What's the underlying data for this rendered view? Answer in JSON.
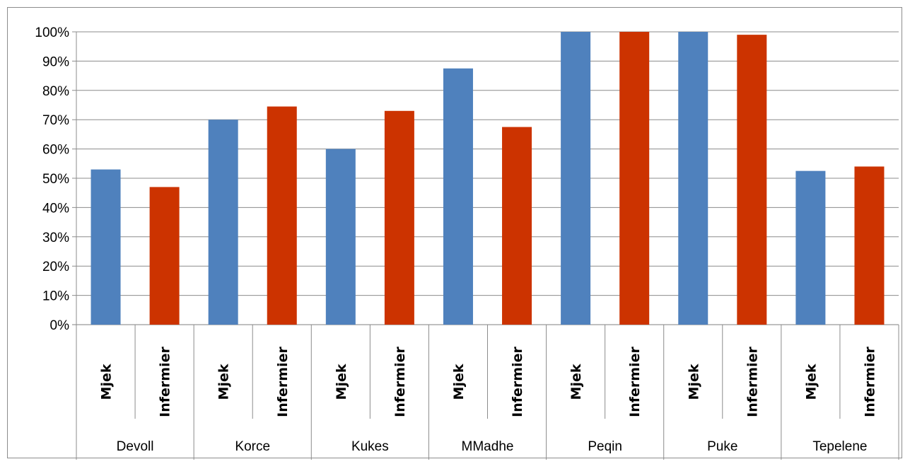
{
  "chart_data": {
    "type": "bar",
    "title": "",
    "xlabel": "",
    "ylabel": "",
    "ylim": [
      0,
      100
    ],
    "y_ticks": [
      "0%",
      "10%",
      "20%",
      "30%",
      "40%",
      "50%",
      "60%",
      "70%",
      "80%",
      "90%",
      "100%"
    ],
    "grid": true,
    "legend": "none",
    "groups": [
      "Devoll",
      "Korce",
      "Kukes",
      "MMadhe",
      "Peqin",
      "Puke",
      "Tepelene"
    ],
    "categories": [
      {
        "group": "Devoll",
        "label": "Mjek",
        "value": 53
      },
      {
        "group": "Devoll",
        "label": "Infermier",
        "value": 47
      },
      {
        "group": "Korce",
        "label": "Mjek",
        "value": 70
      },
      {
        "group": "Korce",
        "label": "Infermier",
        "value": 74.5
      },
      {
        "group": "Kukes",
        "label": "Mjek",
        "value": 60
      },
      {
        "group": "Kukes",
        "label": "Infermier",
        "value": 73
      },
      {
        "group": "MMadhe",
        "label": "Mjek",
        "value": 87.5
      },
      {
        "group": "MMadhe",
        "label": "Infermier",
        "value": 67.5
      },
      {
        "group": "Peqin",
        "label": "Mjek",
        "value": 100
      },
      {
        "group": "Peqin",
        "label": "Infermier",
        "value": 100
      },
      {
        "group": "Puke",
        "label": "Mjek",
        "value": 100
      },
      {
        "group": "Puke",
        "label": "Infermier",
        "value": 99
      },
      {
        "group": "Tepelene",
        "label": "Mjek",
        "value": 52.5
      },
      {
        "group": "Tepelene",
        "label": "Infermier",
        "value": 54
      }
    ],
    "colors": {
      "Mjek": "#4f81bd",
      "Infermier": "#cc3300"
    }
  }
}
